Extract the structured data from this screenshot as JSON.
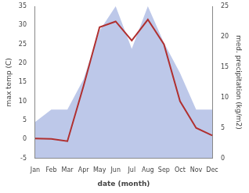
{
  "chart_data": {
    "type": "line",
    "categories": [
      "Jan",
      "Feb",
      "Mar",
      "Apr",
      "May",
      "Jun",
      "Jul",
      "Aug",
      "Sep",
      "Oct",
      "Nov",
      "Dec"
    ],
    "series": [
      {
        "type": "area",
        "color": "#99aadd",
        "axis": "y2",
        "values": [
          6.0,
          8.0,
          8.0,
          13.0,
          21.0,
          25.0,
          18.0,
          25.0,
          19.0,
          14.0,
          8.0,
          8.0
        ]
      },
      {
        "type": "line",
        "color": "#b03030",
        "values": [
          0.2,
          0.1,
          -0.5,
          14.0,
          29.5,
          31.0,
          26.0,
          31.5,
          25.0,
          10.0,
          3.0,
          1.0
        ]
      }
    ],
    "xlabel": "date (month)",
    "ylabel": "max temp (C)",
    "y2label": "med. precipitation (kg/m2)",
    "ylim": [
      -5,
      35
    ],
    "yticks": [
      -5,
      0,
      5,
      10,
      15,
      20,
      25,
      30,
      35
    ],
    "y2lim": [
      0,
      25
    ],
    "y2ticks": [
      0,
      5,
      10,
      15,
      20,
      25
    ],
    "grid": false
  }
}
